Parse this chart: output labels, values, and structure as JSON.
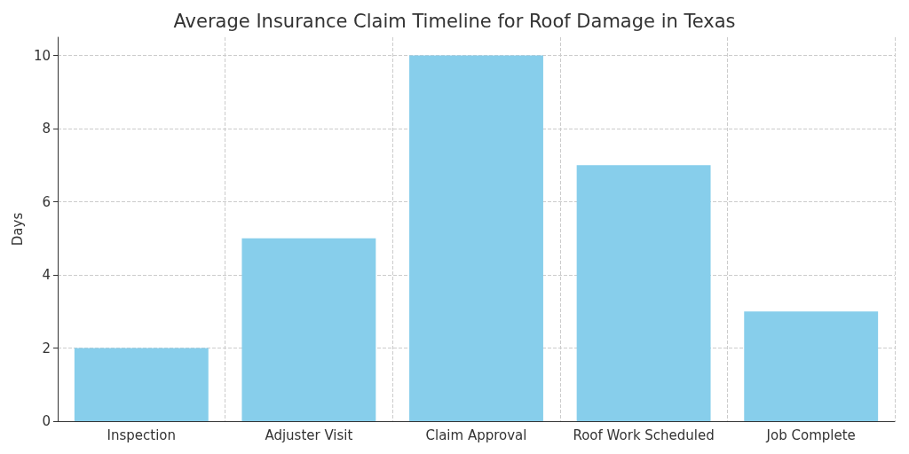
{
  "chart_data": {
    "type": "bar",
    "title": "Average Insurance Claim Timeline for Roof Damage in Texas",
    "categories": [
      "Inspection",
      "Adjuster Visit",
      "Claim Approval",
      "Roof Work Scheduled",
      "Job Complete"
    ],
    "values": [
      2,
      5,
      10,
      7,
      3
    ],
    "color": "#87ceeb",
    "ylabel": "Days",
    "ylim": [
      0,
      10.5
    ],
    "yticks": [
      0,
      2,
      4,
      6,
      8,
      10
    ],
    "grid": true
  }
}
